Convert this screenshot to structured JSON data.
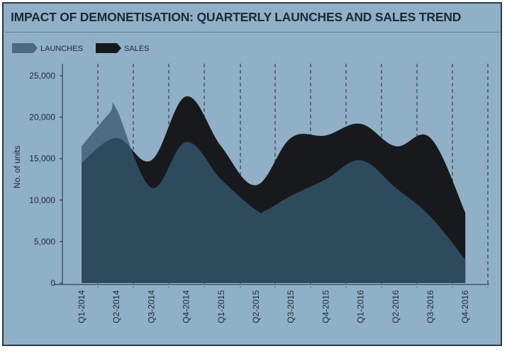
{
  "chart_data": {
    "type": "area",
    "title": "IMPACT OF DEMONETISATION: QUARTERLY LAUNCHES AND SALES TREND",
    "xlabel": "",
    "ylabel": "No. of units",
    "ylim": [
      0,
      25000
    ],
    "yticks": [
      "0",
      "5,000",
      "10,000",
      "15,000",
      "20,000",
      "25,000"
    ],
    "yticks_values": [
      0,
      5000,
      10000,
      15000,
      20000,
      25000
    ],
    "categories": [
      "Q1-2014",
      "Q2-2014",
      "Q3-2014",
      "Q4-2014",
      "Q1-2015",
      "Q2-2015",
      "Q3-2015",
      "Q4-2015",
      "Q1-2016",
      "Q2-2016",
      "Q3-2016",
      "Q4-2016"
    ],
    "legend_position": "top-left",
    "grid": "vertical dashed lines between quarters",
    "series": [
      {
        "name": "LAUNCHES",
        "color": "#4c6a80",
        "x": [
          "Q1-2014",
          "Q2-2014 (mid)",
          "Q2-2014",
          "Q3-2014",
          "Q4-2014",
          "Q1-2015",
          "Q2-2015",
          "Q2-2015 (late)",
          "Q3-2015",
          "Q4-2015",
          "Q1-2016",
          "Q2-2016",
          "Q3-2016",
          "Q4-2016"
        ],
        "values": [
          16500,
          20500,
          21000,
          11500,
          17000,
          12500,
          8800,
          8800,
          10500,
          12500,
          14800,
          11500,
          8000,
          2800
        ]
      },
      {
        "name": "SALES",
        "color": "#17191c",
        "x": [
          "Q1-2014",
          "Q2-2014",
          "Q3-2014",
          "Q4-2014",
          "Q1-2015",
          "Q2-2015",
          "Q3-2015",
          "Q4-2015",
          "Q1-2016",
          "Q2-2016",
          "Q3-2016",
          "Q4-2016"
        ],
        "values": [
          14500,
          17500,
          14800,
          22500,
          16500,
          11800,
          17500,
          17800,
          19200,
          16500,
          17500,
          8500
        ]
      }
    ]
  }
}
